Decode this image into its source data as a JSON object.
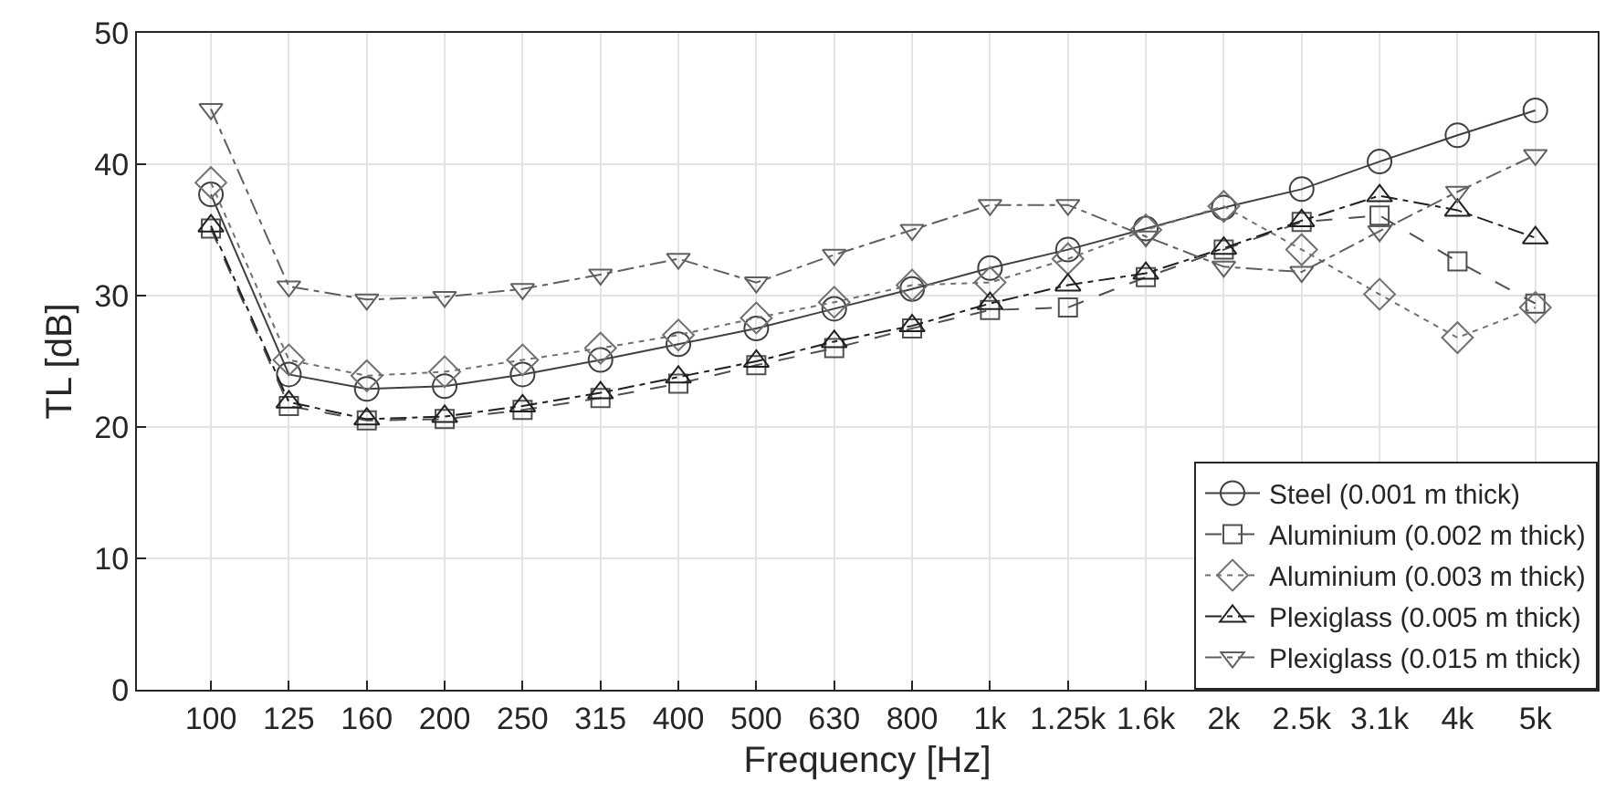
{
  "chart_data": {
    "type": "line",
    "xlabel": "Frequency [Hz]",
    "ylabel": "TL [dB]",
    "categories": [
      "100",
      "125",
      "160",
      "200",
      "250",
      "315",
      "400",
      "500",
      "630",
      "800",
      "1k",
      "1.25k",
      "1.6k",
      "2k",
      "2.5k",
      "3.1k",
      "4k",
      "5k"
    ],
    "series": [
      {
        "name": "Steel (0.001 m thick)",
        "color": "#404040",
        "marker": "circle",
        "line_style": "solid",
        "values": [
          37.7,
          24.0,
          22.9,
          23.1,
          24.0,
          25.1,
          26.3,
          27.5,
          29.0,
          30.5,
          32.1,
          33.5,
          35.1,
          36.7,
          38.1,
          40.2,
          42.2,
          44.1
        ]
      },
      {
        "name": "Aluminium (0.002 m thick)",
        "color": "#505050",
        "marker": "square",
        "line_style": "dashed",
        "values": [
          35.1,
          21.6,
          20.5,
          20.6,
          21.3,
          22.2,
          23.3,
          24.7,
          26.0,
          27.5,
          28.9,
          29.1,
          31.4,
          33.5,
          35.6,
          36.1,
          32.6,
          29.4
        ]
      },
      {
        "name": "Aluminium (0.003 m thick)",
        "color": "#707070",
        "marker": "diamond",
        "line_style": "dotted",
        "values": [
          38.6,
          25.1,
          23.9,
          24.2,
          25.1,
          26.0,
          27.0,
          28.3,
          29.5,
          30.8,
          31.0,
          32.8,
          35.0,
          36.8,
          33.5,
          30.1,
          26.8,
          29.1
        ]
      },
      {
        "name": "Plexiglass (0.005 m thick)",
        "color": "#202020",
        "marker": "triangle",
        "line_style": "dashdot",
        "values": [
          35.3,
          21.9,
          20.6,
          20.8,
          21.6,
          22.6,
          23.8,
          25.0,
          26.5,
          27.7,
          29.4,
          30.8,
          31.7,
          33.6,
          35.7,
          37.6,
          36.5,
          34.4
        ]
      },
      {
        "name": "Plexiglass (0.015 m thick)",
        "color": "#606060",
        "marker": "triangle-down",
        "line_style": "dashdot",
        "values": [
          44.2,
          30.7,
          29.7,
          29.9,
          30.5,
          31.6,
          32.8,
          31.0,
          33.1,
          35.0,
          36.9,
          36.9,
          34.5,
          32.2,
          31.8,
          34.9,
          37.9,
          40.7
        ]
      }
    ],
    "ylim": [
      0,
      50
    ],
    "yticks": [
      0,
      10,
      20,
      30,
      40,
      50
    ],
    "grid": true,
    "legend": "bottom right"
  }
}
